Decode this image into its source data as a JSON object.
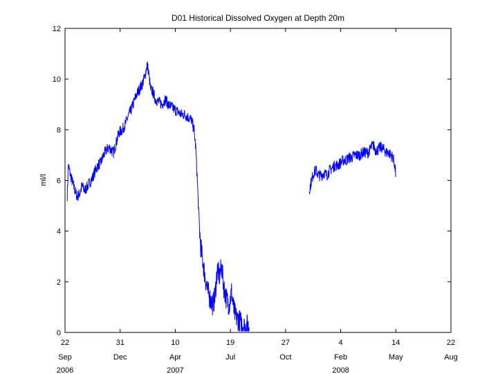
{
  "chart_data": {
    "type": "line",
    "title": "D01 Historical Dissolved Oxygen at Depth 20m",
    "ylabel": "ml/l",
    "xlabel": "",
    "ylim": [
      0,
      12
    ],
    "yticks": [
      0,
      2,
      4,
      6,
      8,
      10,
      12
    ],
    "xlim": [
      "2006-09-22",
      "2008-08-22"
    ],
    "xticks": [
      {
        "date": "2006-09-22",
        "day": "22",
        "month": "Sep",
        "year": "2006"
      },
      {
        "date": "2006-12-31",
        "day": "31",
        "month": "Dec",
        "year": ""
      },
      {
        "date": "2007-04-10",
        "day": "10",
        "month": "Apr",
        "year": "2007"
      },
      {
        "date": "2007-07-19",
        "day": "19",
        "month": "Jul",
        "year": ""
      },
      {
        "date": "2007-10-27",
        "day": "27",
        "month": "Oct",
        "year": ""
      },
      {
        "date": "2008-02-04",
        "day": "4",
        "month": "Feb",
        "year": "2008"
      },
      {
        "date": "2008-05-14",
        "day": "14",
        "month": "May",
        "year": ""
      },
      {
        "date": "2008-08-22",
        "day": "22",
        "month": "Aug",
        "year": ""
      }
    ],
    "grid": false,
    "line_color": "#0000ff",
    "series": [
      {
        "segments": [
          [
            [
              "2006-09-26",
              5.4
            ],
            [
              "2006-09-28",
              6.6
            ],
            [
              "2006-10-02",
              6.2
            ],
            [
              "2006-10-06",
              5.9
            ],
            [
              "2006-10-10",
              5.6
            ],
            [
              "2006-10-14",
              5.35
            ],
            [
              "2006-10-19",
              5.5
            ],
            [
              "2006-10-23",
              5.8
            ],
            [
              "2006-10-27",
              5.6
            ],
            [
              "2006-10-31",
              5.7
            ],
            [
              "2006-11-05",
              5.9
            ],
            [
              "2006-11-11",
              6.1
            ],
            [
              "2006-11-16",
              6.4
            ],
            [
              "2006-11-21",
              6.6
            ],
            [
              "2006-11-26",
              6.7
            ],
            [
              "2006-12-01",
              7.0
            ],
            [
              "2006-12-06",
              7.2
            ],
            [
              "2006-12-11",
              7.3
            ],
            [
              "2006-12-15",
              7.2
            ],
            [
              "2006-12-19",
              7.1
            ],
            [
              "2006-12-24",
              7.5
            ],
            [
              "2006-12-29",
              7.9
            ],
            [
              "2007-01-04",
              8.0
            ],
            [
              "2007-01-09",
              8.2
            ],
            [
              "2007-01-14",
              8.5
            ],
            [
              "2007-01-20",
              8.8
            ],
            [
              "2007-01-25",
              9.1
            ],
            [
              "2007-01-30",
              9.4
            ],
            [
              "2007-02-04",
              9.6
            ],
            [
              "2007-02-09",
              9.8
            ],
            [
              "2007-02-14",
              10.1
            ],
            [
              "2007-02-18",
              10.6
            ],
            [
              "2007-02-21",
              10.2
            ],
            [
              "2007-02-24",
              9.6
            ],
            [
              "2007-02-28",
              9.5
            ],
            [
              "2007-03-05",
              9.2
            ],
            [
              "2007-03-11",
              9.1
            ],
            [
              "2007-03-17",
              9.0
            ],
            [
              "2007-03-23",
              9.2
            ],
            [
              "2007-03-28",
              9.0
            ],
            [
              "2007-04-03",
              8.9
            ],
            [
              "2007-04-09",
              8.8
            ],
            [
              "2007-04-15",
              8.7
            ],
            [
              "2007-04-21",
              8.6
            ],
            [
              "2007-04-27",
              8.6
            ],
            [
              "2007-05-03",
              8.5
            ],
            [
              "2007-05-09",
              8.4
            ],
            [
              "2007-05-14",
              8.0
            ],
            [
              "2007-05-17",
              7.3
            ],
            [
              "2007-05-20",
              6.0
            ],
            [
              "2007-05-23",
              4.4
            ],
            [
              "2007-05-26",
              3.4
            ],
            [
              "2007-05-30",
              2.8
            ],
            [
              "2007-06-03",
              2.2
            ],
            [
              "2007-06-08",
              1.6
            ],
            [
              "2007-06-13",
              1.3
            ],
            [
              "2007-06-17",
              1.1
            ],
            [
              "2007-06-21",
              1.4
            ],
            [
              "2007-06-25",
              2.5
            ],
            [
              "2007-06-29",
              2.2
            ],
            [
              "2007-07-03",
              2.6
            ],
            [
              "2007-07-07",
              1.8
            ],
            [
              "2007-07-12",
              1.3
            ],
            [
              "2007-07-17",
              1.1
            ],
            [
              "2007-07-21",
              1.6
            ],
            [
              "2007-07-25",
              0.9
            ],
            [
              "2007-07-29",
              0.6
            ],
            [
              "2007-08-03",
              0.5
            ],
            [
              "2007-08-07",
              0.4
            ],
            [
              "2007-08-11",
              0.3
            ],
            [
              "2007-08-15",
              0.2
            ],
            [
              "2007-08-19",
              0.3
            ],
            [
              "2007-08-22",
              0.2
            ]
          ],
          [
            [
              "2007-12-09",
              5.6
            ],
            [
              "2007-12-13",
              6.0
            ],
            [
              "2007-12-17",
              6.3
            ],
            [
              "2007-12-21",
              6.4
            ],
            [
              "2007-12-26",
              6.2
            ],
            [
              "2007-12-31",
              6.2
            ],
            [
              "2008-01-05",
              6.3
            ],
            [
              "2008-01-10",
              6.2
            ],
            [
              "2008-01-15",
              6.4
            ],
            [
              "2008-01-20",
              6.5
            ],
            [
              "2008-01-25",
              6.6
            ],
            [
              "2008-01-30",
              6.6
            ],
            [
              "2008-02-04",
              6.7
            ],
            [
              "2008-02-09",
              6.8
            ],
            [
              "2008-02-14",
              6.8
            ],
            [
              "2008-02-19",
              6.9
            ],
            [
              "2008-02-24",
              6.9
            ],
            [
              "2008-02-29",
              7.0
            ],
            [
              "2008-03-05",
              7.0
            ],
            [
              "2008-03-10",
              7.0
            ],
            [
              "2008-03-15",
              7.1
            ],
            [
              "2008-03-20",
              7.1
            ],
            [
              "2008-03-25",
              7.1
            ],
            [
              "2008-03-30",
              7.3
            ],
            [
              "2008-04-03",
              7.4
            ],
            [
              "2008-04-07",
              7.2
            ],
            [
              "2008-04-11",
              7.2
            ],
            [
              "2008-04-15",
              7.3
            ],
            [
              "2008-04-19",
              7.3
            ],
            [
              "2008-04-23",
              7.2
            ],
            [
              "2008-04-27",
              7.1
            ],
            [
              "2008-05-01",
              7.1
            ],
            [
              "2008-05-05",
              7.0
            ],
            [
              "2008-05-09",
              6.9
            ],
            [
              "2008-05-12",
              6.6
            ],
            [
              "2008-05-14",
              6.2
            ]
          ]
        ]
      }
    ]
  }
}
